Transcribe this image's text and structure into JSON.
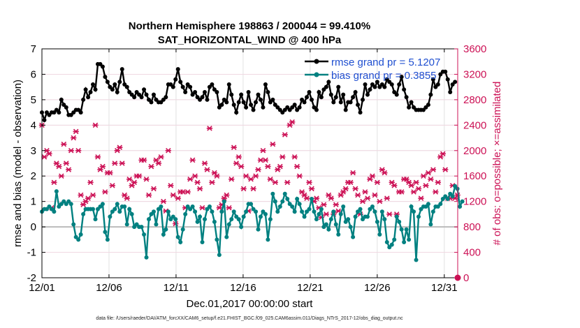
{
  "chart_data": {
    "type": "line",
    "title": "Northern Hemisphere 198863 / 200044 = 99.410%",
    "subtitle": "SAT_HORIZONTAL_WIND @ 400 hPa",
    "xlabel": "Dec.01,2017 00:00:00 start",
    "ylabel_left": "rmse and bias (model - observation)",
    "ylabel_right": "# of obs: o=possible; ×=assimilated",
    "x_tick_labels": [
      "12/01",
      "12/06",
      "12/11",
      "12/16",
      "12/21",
      "12/26",
      "12/31"
    ],
    "x_tick_days": [
      1,
      6,
      11,
      16,
      21,
      26,
      31
    ],
    "xlim": [
      1,
      32
    ],
    "ylim_left": [
      -2,
      7
    ],
    "y_ticks_left": [
      -2,
      -1,
      0,
      1,
      2,
      3,
      4,
      5,
      6,
      7
    ],
    "ylim_right": [
      0,
      3600
    ],
    "y_ticks_right": [
      0,
      400,
      800,
      1200,
      1600,
      2000,
      2400,
      2800,
      3200,
      3600
    ],
    "grid": true,
    "legend_position": "top-right",
    "colors": {
      "rmse": "#000000",
      "bias": "#008080",
      "obs": "#cc1155",
      "legend_text": "#1f4fd0",
      "zero_line": "#bbbbbb",
      "grid": "#e2e2e2"
    },
    "series": [
      {
        "name": "rmse",
        "legend": "rmse grand pr = 5.1207",
        "values": [
          4.5,
          4.2,
          4.5,
          4.4,
          4.5,
          4.5,
          4.6,
          4.5,
          5.0,
          4.8,
          4.7,
          4.4,
          4.4,
          4.5,
          4.6,
          4.6,
          4.5,
          5.0,
          5.4,
          5.1,
          5.3,
          5.6,
          5.4,
          6.4,
          6.4,
          6.3,
          5.9,
          5.7,
          5.5,
          5.4,
          5.6,
          5.3,
          5.7,
          6.2,
          5.6,
          5.5,
          5.3,
          5.2,
          5.1,
          5.3,
          5.2,
          5.1,
          5.4,
          5.2,
          5.0,
          4.9,
          5.2,
          5.0,
          4.9,
          4.9,
          5.0,
          5.1,
          5.6,
          5.6,
          5.5,
          5.8,
          6.2,
          5.7,
          5.5,
          5.3,
          5.6,
          5.5,
          5.2,
          5.3,
          5.1,
          5.0,
          5.1,
          5.3,
          5.0,
          5.5,
          5.6,
          5.4,
          5.3,
          4.7,
          4.8,
          5.0,
          4.9,
          5.6,
          5.2,
          4.8,
          4.5,
          4.9,
          5.2,
          4.9,
          4.7,
          5.3,
          4.8,
          4.6,
          4.9,
          5.2,
          5.0,
          4.7,
          5.6,
          5.3,
          4.9,
          5.0,
          4.8,
          4.7,
          4.6,
          4.5,
          4.6,
          4.7,
          4.6,
          4.7,
          4.8,
          4.6,
          4.7,
          5.0,
          4.9,
          5.1,
          5.3,
          5.0,
          4.7,
          4.6,
          5.3,
          5.1,
          5.4,
          5.5,
          5.7,
          5.2,
          4.9,
          5.1,
          5.5,
          4.9,
          5.2,
          4.6,
          4.9,
          4.9,
          5.1,
          5.3,
          4.8,
          4.5,
          5.0,
          5.6,
          5.2,
          5.4,
          5.6,
          5.5,
          5.7,
          5.5,
          5.6,
          5.5,
          5.8,
          5.7,
          5.6,
          5.3,
          5.2,
          5.6,
          5.9,
          5.4,
          5.1,
          4.7,
          4.9,
          4.7,
          4.6,
          4.6,
          4.6,
          4.6,
          4.7,
          4.8,
          5.2,
          5.8,
          5.5,
          5.6,
          6.0,
          6.1,
          6.1,
          5.8,
          5.3,
          5.6,
          5.7
        ]
      },
      {
        "name": "bias",
        "legend": "bias grand pr = 0.3855",
        "values": [
          0.6,
          0.7,
          0.7,
          0.8,
          0.7,
          0.6,
          1.4,
          0.8,
          0.9,
          1.0,
          0.9,
          1.0,
          0.9,
          0.1,
          -0.4,
          -0.5,
          -0.3,
          0.5,
          0.7,
          0.7,
          0.7,
          0.7,
          0.3,
          0.7,
          0.8,
          0.9,
          -0.2,
          -0.5,
          0.4,
          0.6,
          0.7,
          0.9,
          0.6,
          0.8,
          0.8,
          0.1,
          0.7,
          0.5,
          0.0,
          0.1,
          0.0,
          0.0,
          -0.3,
          -1.2,
          0.3,
          0.5,
          0.6,
          0.1,
          0.7,
          0.8,
          -0.3,
          -0.1,
          0.6,
          0.3,
          0.4,
          0.3,
          -0.4,
          -0.6,
          -0.1,
          0.5,
          0.8,
          0.7,
          0.8,
          0.6,
          0.2,
          0.4,
          -0.6,
          0.3,
          0.7,
          0.8,
          0.6,
          0.2,
          -0.5,
          -1.1,
          0.6,
          1.0,
          -0.4,
          0.1,
          0.3,
          0.6,
          0.4,
          0.3,
          0.0,
          0.4,
          0.6,
          0.9,
          0.9,
          0.7,
          0.6,
          -0.1,
          0.4,
          0.6,
          0.5,
          -0.5,
          0.3,
          1.3,
          1.0,
          0.6,
          0.8,
          1.0,
          1.3,
          1.1,
          0.9,
          0.8,
          0.6,
          1.1,
          0.9,
          0.6,
          0.4,
          0.6,
          0.7,
          1.1,
          0.6,
          0.3,
          0.5,
          0.7,
          0.0,
          0.1,
          -0.1,
          0.3,
          0.6,
          0.1,
          -0.3,
          0.5,
          0.8,
          0.2,
          0.3,
          0.0,
          -0.4,
          0.4,
          0.6,
          0.7,
          0.3,
          0.4,
          0.4,
          0.7,
          0.8,
          0.6,
          0.2,
          -0.3,
          0.6,
          0.3,
          -0.6,
          -0.8,
          -0.7,
          -0.5,
          0.4,
          0.2,
          -0.1,
          -0.6,
          -0.1,
          -0.5,
          0.8,
          0.6,
          -1.3,
          0.4,
          0.7,
          0.8,
          0.8,
          0.9,
          0.1,
          0.6,
          0.8,
          0.8,
          0.9,
          1.1,
          1.2,
          1.1,
          1.3,
          1.2,
          1.6,
          1.5,
          0.8,
          1.0
        ]
      },
      {
        "name": "obs",
        "values": [
          2400,
          1900,
          2000,
          1950,
          1100,
          1500,
          1800,
          1750,
          1600,
          2100,
          1800,
          1700,
          2000,
          2200,
          2300,
          2000,
          1300,
          1150,
          1200,
          1250,
          1500,
          1300,
          2400,
          1900,
          1700,
          1750,
          1350,
          1650,
          1650,
          1450,
          1800,
          2000,
          2050,
          1800,
          1300,
          1250,
          1550,
          1450,
          1500,
          1600,
          1600,
          1850,
          1850,
          1550,
          1300,
          1750,
          1400,
          1850,
          1800,
          1900,
          1200,
          1050,
          2000,
          1450,
          1300,
          850,
          1250,
          1350,
          1350,
          1100,
          1350,
          1550,
          1850,
          1600,
          1500,
          1400,
          1100,
          1800,
          1700,
          2350,
          1500,
          1650,
          1600,
          1100,
          1150,
          1250,
          1300,
          1100,
          1550,
          2050,
          1800,
          1900,
          1750,
          1400,
          1600,
          1050,
          1550,
          1400,
          1600,
          1700,
          1850,
          2000,
          1850,
          1750,
          1550,
          2100,
          1500,
          1700,
          1750,
          1900,
          2250,
          1500,
          2400,
          2450,
          1900,
          1750,
          1600,
          1350,
          1300,
          1250,
          1500,
          1400,
          1200,
          1250,
          1100,
          950,
          1150,
          1000,
          1300,
          1250,
          1000,
          1150,
          1050,
          1300,
          1350,
          1400,
          1500,
          1500,
          1650,
          1400,
          1300,
          1000,
          1200,
          1350,
          1250,
          1550,
          1600,
          1300,
          1500,
          1200,
          1700,
          1650,
          1250,
          1000,
          1500,
          1450,
          1000,
          1350,
          1350,
          1550,
          1550,
          1500,
          1450,
          1350,
          1500,
          1400,
          1250,
          1600,
          1450,
          1650,
          1550,
          1700,
          1350,
          1500,
          1900,
          1950,
          1700,
          1250,
          1250,
          1450,
          1250,
          1300
        ]
      }
    ],
    "footer": "data file: /Users/raeder/DAI/ATM_forcXX/CAM6_setup/f.e21.FHIST_BGC.f09_025.CAM6assim.011/Diags_NTrS_2017-12/obs_diag_output.nc"
  }
}
